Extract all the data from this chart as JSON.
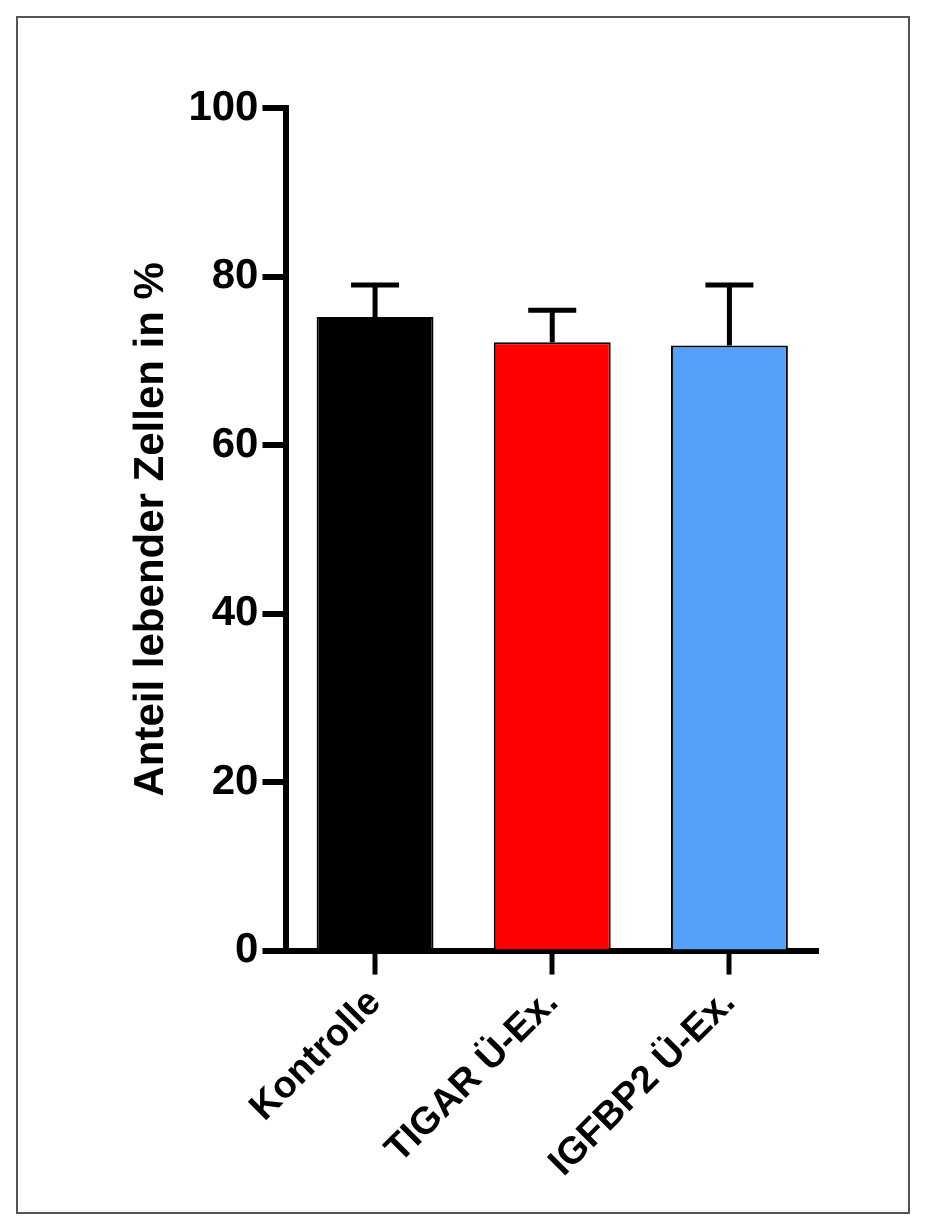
{
  "chart_data": {
    "type": "bar",
    "ylabel": "Anteil lebender Zellen in %",
    "categories": [
      "Kontrolle",
      "TIGAR Ü-Ex.",
      "IGFBP2 Ü-Ex."
    ],
    "values": [
      75.2,
      72.2,
      71.8
    ],
    "colors": [
      "#000000",
      "#ff0000",
      "#55a0fb"
    ],
    "errors": [
      [
        75.2,
        79.0
      ],
      [
        72.2,
        76.0
      ],
      [
        71.8,
        79.0
      ]
    ],
    "ylim": [
      0,
      100
    ],
    "yticks": [
      0,
      20,
      40,
      60,
      80,
      100
    ],
    "grid": false,
    "legend": false
  }
}
